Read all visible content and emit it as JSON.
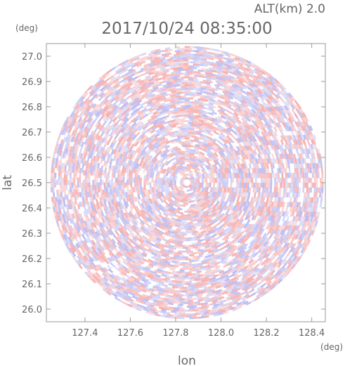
{
  "chart_data": {
    "type": "heatmap",
    "title": "2017/10/24 08:35:00",
    "altitude_label": "ALT(km) 2.0",
    "xlabel": "lon",
    "ylabel": "lat",
    "x_unit": "(deg)",
    "y_unit": "(deg)",
    "xlim": [
      127.23,
      128.46
    ],
    "ylim": [
      25.95,
      27.05
    ],
    "x_ticks": [
      127.4,
      127.6,
      127.8,
      128.0,
      128.2,
      128.4
    ],
    "x_tick_labels": [
      "127.4",
      "127.6",
      "127.8",
      "128.0",
      "128.2",
      "128.4"
    ],
    "y_ticks": [
      26.0,
      26.1,
      26.2,
      26.3,
      26.4,
      26.5,
      26.6,
      26.7,
      26.8,
      26.9,
      27.0
    ],
    "y_tick_labels": [
      "26.0",
      "26.1",
      "26.2",
      "26.3",
      "26.4",
      "26.5",
      "26.6",
      "26.7",
      "26.8",
      "26.9",
      "27.0"
    ],
    "radar_center": {
      "lon": 127.85,
      "lat": 26.5
    },
    "radar_range_lat_deg": 0.54,
    "colors": {
      "positive": "#f4a6a6",
      "negative": "#b4b4f0",
      "neutral": "#ffffff",
      "frame": "#999999"
    },
    "grid": false,
    "legend": "none"
  }
}
